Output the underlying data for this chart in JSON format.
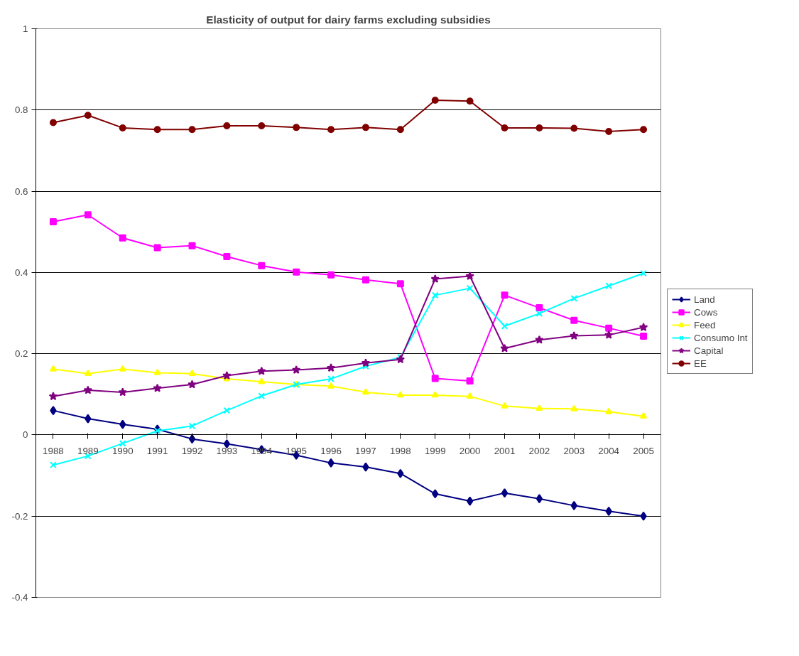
{
  "chart_data": {
    "type": "line",
    "title": "Elasticity of output for dairy farms excluding subsidies",
    "categories": [
      "1988",
      "1989",
      "1990",
      "1991",
      "1992",
      "1993",
      "1994",
      "1995",
      "1996",
      "1997",
      "1998",
      "1999",
      "2000",
      "2001",
      "2002",
      "2003",
      "2004",
      "2005"
    ],
    "series": [
      {
        "name": "Land",
        "color": "#000080",
        "marker": "diamond",
        "values": [
          0.06,
          0.04,
          0.026,
          0.014,
          -0.01,
          -0.022,
          -0.036,
          -0.05,
          -0.069,
          -0.079,
          -0.095,
          -0.145,
          -0.163,
          -0.143,
          -0.157,
          -0.174,
          -0.188,
          -0.2
        ]
      },
      {
        "name": "Cows",
        "color": "#ff00ff",
        "marker": "square",
        "values": [
          0.525,
          0.542,
          0.485,
          0.461,
          0.466,
          0.439,
          0.417,
          0.401,
          0.394,
          0.382,
          0.372,
          0.139,
          0.133,
          0.344,
          0.313,
          0.282,
          0.263,
          0.243
        ]
      },
      {
        "name": "Feed",
        "color": "#ffff00",
        "marker": "triangle",
        "values": [
          0.162,
          0.151,
          0.162,
          0.153,
          0.151,
          0.138,
          0.131,
          0.124,
          0.12,
          0.105,
          0.098,
          0.098,
          0.095,
          0.071,
          0.065,
          0.064,
          0.057,
          0.046
        ]
      },
      {
        "name": "Consumo Int",
        "color": "#00ffff",
        "marker": "cross",
        "values": [
          -0.074,
          -0.052,
          -0.021,
          0.01,
          0.022,
          0.06,
          0.096,
          0.124,
          0.138,
          0.169,
          0.191,
          0.344,
          0.361,
          0.268,
          0.299,
          0.336,
          0.367,
          0.398
        ]
      },
      {
        "name": "Capital",
        "color": "#800080",
        "marker": "star",
        "values": [
          0.095,
          0.11,
          0.105,
          0.115,
          0.124,
          0.146,
          0.157,
          0.16,
          0.165,
          0.177,
          0.186,
          0.384,
          0.391,
          0.213,
          0.234,
          0.244,
          0.246,
          0.265
        ]
      },
      {
        "name": "EE",
        "color": "#800000",
        "marker": "circle",
        "values": [
          0.769,
          0.787,
          0.756,
          0.752,
          0.752,
          0.761,
          0.761,
          0.757,
          0.752,
          0.757,
          0.752,
          0.824,
          0.822,
          0.756,
          0.756,
          0.755,
          0.747,
          0.752
        ]
      }
    ],
    "ylim": [
      -0.4,
      1
    ],
    "yticks": [
      -0.4,
      -0.2,
      0,
      0.2,
      0.4,
      0.6,
      0.8,
      1
    ],
    "grid": "y",
    "legend": "right",
    "line_style": "solid"
  }
}
